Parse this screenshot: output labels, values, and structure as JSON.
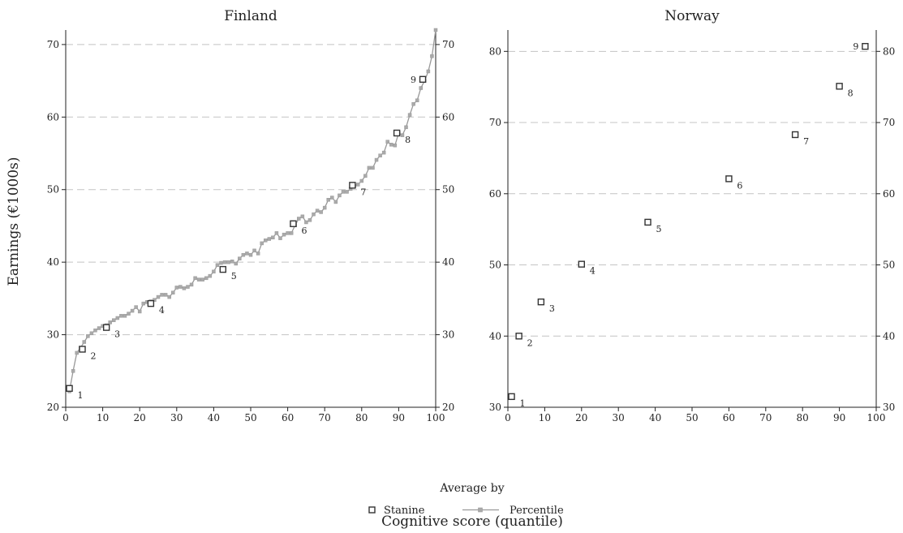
{
  "chart_data": [
    {
      "type": "scatter",
      "title": "Finland",
      "xlim": [
        0,
        100
      ],
      "ylim": [
        20,
        72
      ],
      "xticks": [
        0,
        10,
        20,
        30,
        40,
        50,
        60,
        70,
        80,
        90,
        100
      ],
      "yticks": [
        20,
        30,
        40,
        50,
        60,
        70
      ],
      "grid": "horizontal-dashed",
      "series": [
        {
          "name": "Stanine",
          "marker": "hollow-square",
          "points": [
            {
              "label": "1",
              "x": 1,
              "y": 22.6
            },
            {
              "label": "2",
              "x": 4.5,
              "y": 28.0
            },
            {
              "label": "3",
              "x": 11,
              "y": 31.0
            },
            {
              "label": "4",
              "x": 23,
              "y": 34.3
            },
            {
              "label": "5",
              "x": 42.5,
              "y": 39.0
            },
            {
              "label": "6",
              "x": 61.5,
              "y": 45.3
            },
            {
              "label": "7",
              "x": 77.5,
              "y": 50.6
            },
            {
              "label": "8",
              "x": 89.5,
              "y": 57.8
            },
            {
              "label": "9",
              "x": 96.5,
              "y": 65.2
            }
          ]
        },
        {
          "name": "Percentile",
          "marker": "small-filled-square-line",
          "x": [
            1,
            2,
            3,
            4,
            5,
            6,
            7,
            8,
            9,
            10,
            11,
            12,
            13,
            14,
            15,
            16,
            17,
            18,
            19,
            20,
            21,
            22,
            23,
            24,
            25,
            26,
            27,
            28,
            29,
            30,
            31,
            32,
            33,
            34,
            35,
            36,
            37,
            38,
            39,
            40,
            41,
            42,
            43,
            44,
            45,
            46,
            47,
            48,
            49,
            50,
            51,
            52,
            53,
            54,
            55,
            56,
            57,
            58,
            59,
            60,
            61,
            62,
            63,
            64,
            65,
            66,
            67,
            68,
            69,
            70,
            71,
            72,
            73,
            74,
            75,
            76,
            77,
            78,
            79,
            80,
            81,
            82,
            83,
            84,
            85,
            86,
            87,
            88,
            89,
            90,
            91,
            92,
            93,
            94,
            95,
            96,
            97,
            98,
            99,
            100
          ],
          "y": [
            22.2,
            25.0,
            27.5,
            28.2,
            29.0,
            29.8,
            30.2,
            30.6,
            30.9,
            31.2,
            31.3,
            31.7,
            32.0,
            32.3,
            32.6,
            32.6,
            32.9,
            33.3,
            33.8,
            33.2,
            34.3,
            34.5,
            34.6,
            34.8,
            35.2,
            35.5,
            35.5,
            35.2,
            35.8,
            36.5,
            36.6,
            36.4,
            36.6,
            36.9,
            37.8,
            37.6,
            37.6,
            37.8,
            38.1,
            38.7,
            39.6,
            39.9,
            40.0,
            40.0,
            40.1,
            39.8,
            40.5,
            41.0,
            41.2,
            41.0,
            41.6,
            41.2,
            42.6,
            43.0,
            43.2,
            43.4,
            44.0,
            43.3,
            43.8,
            44.0,
            44.0,
            45.1,
            46.0,
            46.3,
            45.5,
            45.8,
            46.6,
            47.1,
            46.9,
            47.5,
            48.6,
            48.9,
            48.3,
            49.2,
            49.7,
            49.7,
            50.1,
            50.5,
            50.7,
            51.2,
            51.9,
            53.0,
            53.0,
            54.1,
            54.7,
            55.1,
            56.6,
            56.2,
            56.1,
            57.8,
            57.5,
            58.6,
            60.3,
            61.8,
            62.3,
            64.0,
            65.0,
            66.3,
            68.4,
            72.0
          ]
        }
      ]
    },
    {
      "type": "scatter",
      "title": "Norway",
      "xlim": [
        0,
        100
      ],
      "ylim": [
        30,
        83
      ],
      "xticks": [
        0,
        10,
        20,
        30,
        40,
        50,
        60,
        70,
        80,
        90,
        100
      ],
      "yticks": [
        30,
        40,
        50,
        60,
        70,
        80
      ],
      "grid": "horizontal-dashed",
      "series": [
        {
          "name": "Stanine",
          "marker": "hollow-square",
          "points": [
            {
              "label": "1",
              "x": 1,
              "y": 31.5
            },
            {
              "label": "2",
              "x": 3,
              "y": 40.0
            },
            {
              "label": "3",
              "x": 9,
              "y": 44.8
            },
            {
              "label": "4",
              "x": 20,
              "y": 50.1
            },
            {
              "label": "5",
              "x": 38,
              "y": 56.0
            },
            {
              "label": "6",
              "x": 60,
              "y": 62.1
            },
            {
              "label": "7",
              "x": 78,
              "y": 68.3
            },
            {
              "label": "8",
              "x": 90,
              "y": 75.1
            },
            {
              "label": "9",
              "x": 97,
              "y": 80.7
            }
          ]
        }
      ]
    }
  ],
  "shared": {
    "ylabel": "Earnings (€1000s)",
    "xlabel": "Cognitive score (quantile)",
    "legend": {
      "title": "Average by",
      "items": [
        {
          "name": "Stanine",
          "marker": "hollow-square"
        },
        {
          "name": "Percentile",
          "marker": "line-with-square"
        }
      ]
    },
    "colors": {
      "stanine": "#333333",
      "percentile": "#999999",
      "grid": "#c4c4c4",
      "axis": "#222222"
    }
  }
}
